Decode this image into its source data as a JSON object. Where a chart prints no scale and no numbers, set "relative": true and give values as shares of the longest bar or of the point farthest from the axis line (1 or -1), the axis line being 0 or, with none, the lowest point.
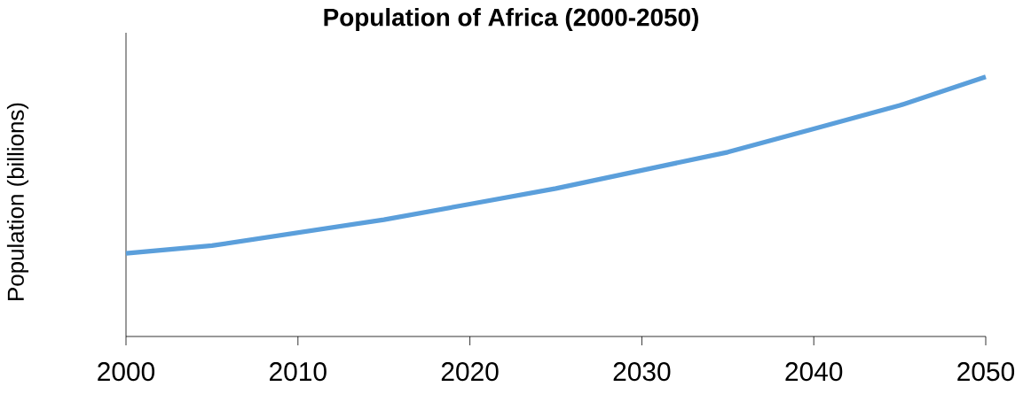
{
  "chart_data": {
    "type": "line",
    "title": "Population of Africa (2000-2050)",
    "ylabel": "Population (billions)",
    "x": [
      2000,
      2005,
      2010,
      2015,
      2020,
      2025,
      2030,
      2035,
      2040,
      2045,
      2050
    ],
    "values": [
      0.32,
      0.35,
      0.4,
      0.45,
      0.51,
      0.57,
      0.64,
      0.71,
      0.8,
      0.89,
      1
    ],
    "color": "#5b9fdb",
    "relative": true,
    "xlim": [
      2000,
      2050
    ],
    "xticks": [
      2000,
      2010,
      2020,
      2030,
      2040,
      2050
    ]
  }
}
